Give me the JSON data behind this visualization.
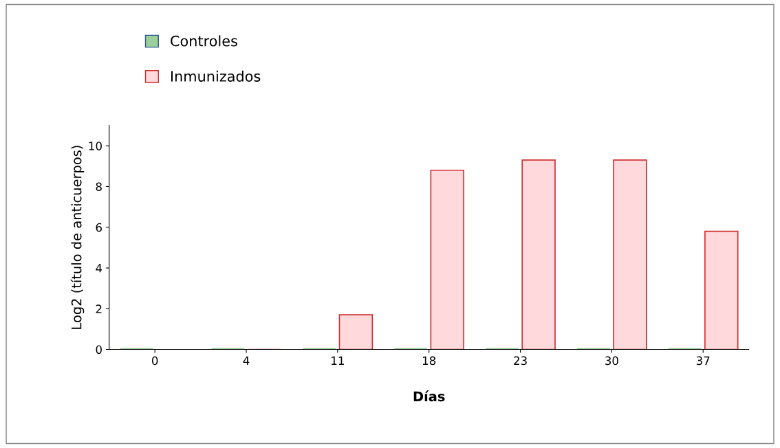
{
  "chart_data": {
    "type": "bar",
    "xlabel": "Días",
    "ylabel": "Log2 (título de anticuerpos)",
    "categories": [
      "0",
      "4",
      "11",
      "18",
      "23",
      "30",
      "37"
    ],
    "series": [
      {
        "name": "Controles",
        "color": "#9bcf9b",
        "values": [
          0,
          0,
          0,
          0,
          0,
          0,
          0
        ]
      },
      {
        "name": "Inmunizados",
        "color": "#ffd9dc",
        "values": [
          null,
          0,
          1.7,
          8.8,
          9.3,
          9.3,
          5.8
        ]
      }
    ],
    "ylim": [
      0,
      11
    ],
    "yticks": [
      0,
      2,
      4,
      6,
      8,
      10
    ],
    "grid": false,
    "legend": "top left"
  }
}
